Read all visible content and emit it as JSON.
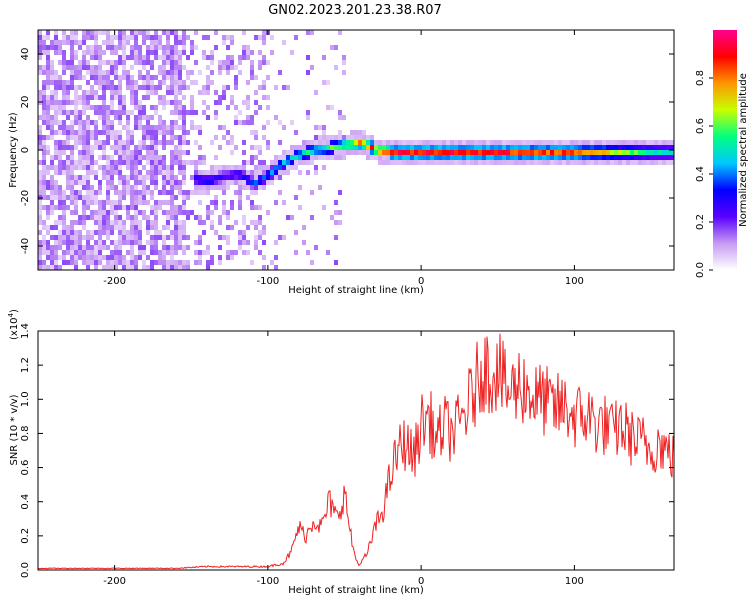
{
  "title": "GN02.2023.201.23.38.R07",
  "chart_data": [
    {
      "type": "heatmap",
      "xlabel": "Height of straight line (km)",
      "ylabel": "Frequency (Hz)",
      "xlim": [
        -250,
        165
      ],
      "ylim": [
        -50,
        50
      ],
      "xticks": [
        -200,
        -100,
        0,
        100
      ],
      "yticks": [
        -40,
        -20,
        0,
        20,
        40
      ],
      "colorbar": {
        "label": "Normalized spectral amplitude",
        "range": [
          0.0,
          1.0
        ],
        "ticks": [
          "0.0",
          "0.2",
          "0.4",
          "0.6",
          "0.8"
        ],
        "colors": [
          "#ffffff",
          "#c79af3",
          "#5a00ff",
          "#0000ff",
          "#00c8ff",
          "#00ff80",
          "#c8ff00",
          "#ff9600",
          "#ff0000",
          "#ff0090"
        ]
      },
      "ridge": {
        "x": [
          -150,
          -140,
          -130,
          -120,
          -110,
          -100,
          -90,
          -80,
          -70,
          -60,
          -50,
          -40,
          -30,
          -20,
          0,
          50,
          100,
          150,
          165
        ],
        "freq": [
          -11,
          -12,
          -10,
          -9,
          -13,
          -9,
          -4,
          -1,
          1,
          2,
          3,
          4,
          1,
          0,
          0,
          0,
          0,
          0,
          0
        ],
        "amp": [
          0.35,
          0.4,
          0.3,
          0.35,
          0.4,
          0.45,
          0.55,
          0.6,
          0.6,
          0.65,
          0.75,
          0.9,
          0.95,
          0.95,
          0.98,
          0.95,
          0.9,
          0.55,
          0.5
        ]
      }
    },
    {
      "type": "line",
      "xlabel": "Height of straight line (km)",
      "ylabel": "SNR (10 * v/v)",
      "multiplier": "(x10",
      "multiplier_exp": "4",
      "multiplier_close": ")",
      "xlim": [
        -250,
        165
      ],
      "ylim": [
        0.0,
        1.4
      ],
      "xticks": [
        -200,
        -100,
        0,
        100
      ],
      "yticks": [
        "0.0",
        "0.2",
        "0.4",
        "0.6",
        "0.8",
        "1.0",
        "1.2",
        "1.4"
      ],
      "color": "#ff0000",
      "series": [
        {
          "x": [
            -250,
            -230,
            -200,
            -180,
            -160,
            -140,
            -130,
            -120,
            -110,
            -100,
            -95,
            -90,
            -85,
            -80,
            -75,
            -70,
            -65,
            -60,
            -55,
            -50,
            -45,
            -42,
            -40,
            -35,
            -30,
            -25,
            -20,
            -15,
            -10,
            -5,
            0,
            5,
            10,
            15,
            20,
            25,
            30,
            35,
            40,
            45,
            50,
            55,
            60,
            65,
            70,
            75,
            80,
            85,
            90,
            95,
            100,
            105,
            110,
            115,
            120,
            125,
            130,
            135,
            140,
            145,
            150,
            155,
            160,
            165
          ],
          "y": [
            0.01,
            0.01,
            0.01,
            0.01,
            0.01,
            0.02,
            0.02,
            0.02,
            0.02,
            0.02,
            0.03,
            0.04,
            0.1,
            0.25,
            0.2,
            0.3,
            0.25,
            0.4,
            0.3,
            0.45,
            0.15,
            0.05,
            0.03,
            0.1,
            0.25,
            0.35,
            0.55,
            0.7,
            0.75,
            0.65,
            0.85,
            0.9,
            0.75,
            0.85,
            0.8,
            0.85,
            0.95,
            1.05,
            1.2,
            1.15,
            1.2,
            1.05,
            1.05,
            1.1,
            1.05,
            1.0,
            1.0,
            0.95,
            0.95,
            0.95,
            0.9,
            0.9,
            0.9,
            0.85,
            0.85,
            0.8,
            0.85,
            0.8,
            0.75,
            0.75,
            0.7,
            0.75,
            0.7,
            0.65
          ]
        }
      ]
    }
  ]
}
